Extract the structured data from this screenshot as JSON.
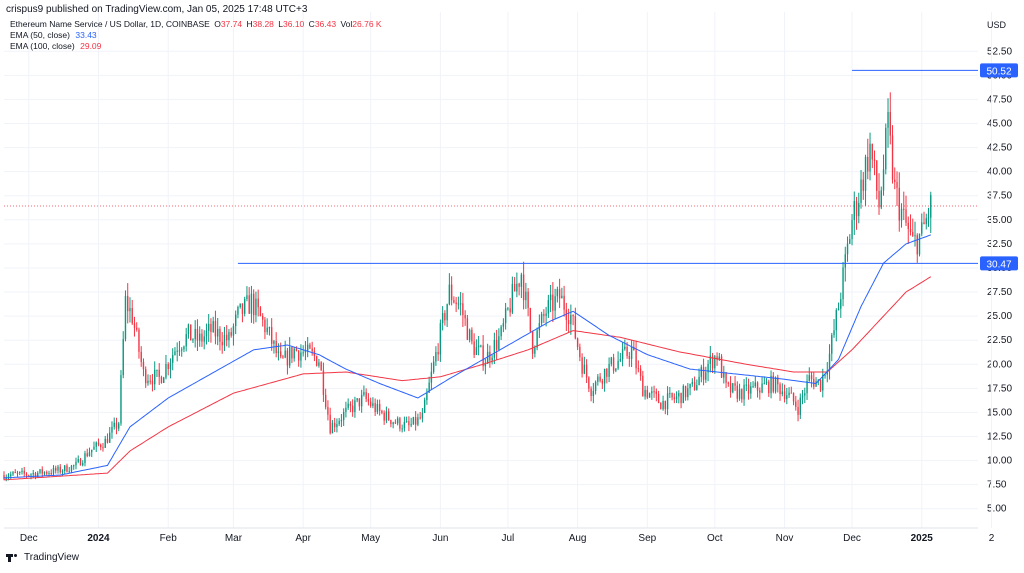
{
  "header": {
    "published": "crispus9 published on TradingView.com, Jan 05, 2025 17:48 UTC+3"
  },
  "legend": {
    "symbol": "Ethereum Name Service / US Dollar, 1D, COINBASE",
    "open_label": "O",
    "open": "37.74",
    "high_label": "H",
    "high": "38.28",
    "low_label": "L",
    "low": "36.10",
    "close_label": "C",
    "close": "36.43",
    "vol_label": "Vol",
    "vol": "26.76 K",
    "ema50_label": "EMA (50, close)",
    "ema50_value": "33.43",
    "ema100_label": "EMA (100, close)",
    "ema100_value": "29.09"
  },
  "axis": {
    "currency": "USD"
  },
  "footer": {
    "brand": "TradingView"
  },
  "colors": {
    "up": "#089981",
    "down": "#f23645",
    "ema50": "#2962ff",
    "ema100": "#f23645",
    "hline": "#2962ff",
    "grid": "#f0f3fa"
  },
  "chart_data": {
    "type": "candlestick",
    "title": "Ethereum Name Service / US Dollar, 1D, COINBASE",
    "xlabel": "",
    "ylabel": "USD",
    "y_range": [
      3.0,
      54.5
    ],
    "yticks": [
      "5.00",
      "7.50",
      "10.00",
      "12.50",
      "15.00",
      "17.50",
      "20.00",
      "22.50",
      "25.00",
      "27.50",
      "30.00",
      "32.50",
      "35.00",
      "37.50",
      "40.00",
      "42.50",
      "45.00",
      "47.50",
      "50.00",
      "52.50"
    ],
    "x_range": [
      "2023-11-20",
      "2025-01-26"
    ],
    "xticks": [
      {
        "date": "2023-12-01",
        "label": "Dec",
        "bold": false
      },
      {
        "date": "2024-01-01",
        "label": "2024",
        "bold": true
      },
      {
        "date": "2024-02-01",
        "label": "Feb",
        "bold": false
      },
      {
        "date": "2024-03-01",
        "label": "Mar",
        "bold": false
      },
      {
        "date": "2024-04-01",
        "label": "Apr",
        "bold": false
      },
      {
        "date": "2024-05-01",
        "label": "May",
        "bold": false
      },
      {
        "date": "2024-06-01",
        "label": "Jun",
        "bold": false
      },
      {
        "date": "2024-07-01",
        "label": "Jul",
        "bold": false
      },
      {
        "date": "2024-08-01",
        "label": "Aug",
        "bold": false
      },
      {
        "date": "2024-09-01",
        "label": "Sep",
        "bold": false
      },
      {
        "date": "2024-10-01",
        "label": "Oct",
        "bold": false
      },
      {
        "date": "2024-11-01",
        "label": "Nov",
        "bold": false
      },
      {
        "date": "2024-12-01",
        "label": "Dec",
        "bold": false
      },
      {
        "date": "2025-01-01",
        "label": "2025",
        "bold": true
      },
      {
        "date": "2025-02-01",
        "label": "2",
        "bold": false
      }
    ],
    "grid": true,
    "close_waypoints": [
      [
        "2023-11-20",
        8.5
      ],
      [
        "2023-12-01",
        8.6
      ],
      [
        "2023-12-15",
        9.0
      ],
      [
        "2023-12-22",
        9.5
      ],
      [
        "2023-12-28",
        11.0
      ],
      [
        "2024-01-04",
        12.0
      ],
      [
        "2024-01-10",
        14.0
      ],
      [
        "2024-01-13",
        26.5
      ],
      [
        "2024-01-16",
        25.0
      ],
      [
        "2024-01-21",
        19.0
      ],
      [
        "2024-01-28",
        18.5
      ],
      [
        "2024-02-05",
        22.0
      ],
      [
        "2024-02-10",
        23.0
      ],
      [
        "2024-02-15",
        22.5
      ],
      [
        "2024-02-20",
        23.5
      ],
      [
        "2024-02-28",
        22.5
      ],
      [
        "2024-03-03",
        25.0
      ],
      [
        "2024-03-09",
        26.5
      ],
      [
        "2024-03-16",
        23.5
      ],
      [
        "2024-03-22",
        20.0
      ],
      [
        "2024-03-28",
        21.5
      ],
      [
        "2024-04-04",
        21.0
      ],
      [
        "2024-04-08",
        20.5
      ],
      [
        "2024-04-13",
        13.5
      ],
      [
        "2024-04-20",
        15.0
      ],
      [
        "2024-04-28",
        16.5
      ],
      [
        "2024-05-05",
        15.0
      ],
      [
        "2024-05-12",
        14.0
      ],
      [
        "2024-05-18",
        13.5
      ],
      [
        "2024-05-24",
        14.5
      ],
      [
        "2024-05-30",
        21.0
      ],
      [
        "2024-06-05",
        27.5
      ],
      [
        "2024-06-10",
        26.0
      ],
      [
        "2024-06-15",
        22.0
      ],
      [
        "2024-06-21",
        20.5
      ],
      [
        "2024-06-28",
        23.0
      ],
      [
        "2024-07-03",
        27.0
      ],
      [
        "2024-07-07",
        29.5
      ],
      [
        "2024-07-12",
        22.0
      ],
      [
        "2024-07-18",
        25.5
      ],
      [
        "2024-07-24",
        27.0
      ],
      [
        "2024-07-29",
        25.0
      ],
      [
        "2024-08-03",
        20.0
      ],
      [
        "2024-08-07",
        17.5
      ],
      [
        "2024-08-14",
        19.5
      ],
      [
        "2024-08-20",
        20.5
      ],
      [
        "2024-08-25",
        21.5
      ],
      [
        "2024-08-30",
        17.5
      ],
      [
        "2024-09-07",
        16.0
      ],
      [
        "2024-09-14",
        16.5
      ],
      [
        "2024-09-21",
        17.5
      ],
      [
        "2024-09-28",
        20.0
      ],
      [
        "2024-10-02",
        21.0
      ],
      [
        "2024-10-06",
        17.5
      ],
      [
        "2024-10-12",
        17.0
      ],
      [
        "2024-10-20",
        17.5
      ],
      [
        "2024-10-27",
        18.0
      ],
      [
        "2024-11-02",
        17.0
      ],
      [
        "2024-11-07",
        15.5
      ],
      [
        "2024-11-12",
        18.5
      ],
      [
        "2024-11-17",
        18.0
      ],
      [
        "2024-11-21",
        21.0
      ],
      [
        "2024-11-25",
        26.0
      ],
      [
        "2024-11-29",
        32.0
      ],
      [
        "2024-12-01",
        35.0
      ],
      [
        "2024-12-05",
        38.5
      ],
      [
        "2024-12-09",
        42.5
      ],
      [
        "2024-12-13",
        36.5
      ],
      [
        "2024-12-17",
        44.5
      ],
      [
        "2024-12-20",
        38.0
      ],
      [
        "2024-12-24",
        35.0
      ],
      [
        "2024-12-28",
        32.5
      ],
      [
        "2025-01-01",
        33.5
      ],
      [
        "2025-01-05",
        36.43
      ]
    ],
    "ema50_waypoints": [
      [
        "2023-11-20",
        8.2
      ],
      [
        "2023-12-15",
        8.5
      ],
      [
        "2024-01-05",
        9.5
      ],
      [
        "2024-01-15",
        13.5
      ],
      [
        "2024-02-01",
        16.5
      ],
      [
        "2024-02-20",
        19.0
      ],
      [
        "2024-03-10",
        21.5
      ],
      [
        "2024-03-25",
        22.0
      ],
      [
        "2024-04-08",
        21.0
      ],
      [
        "2024-04-20",
        19.5
      ],
      [
        "2024-05-05",
        18.0
      ],
      [
        "2024-05-22",
        16.5
      ],
      [
        "2024-06-05",
        18.5
      ],
      [
        "2024-06-20",
        20.5
      ],
      [
        "2024-07-05",
        22.5
      ],
      [
        "2024-07-20",
        24.5
      ],
      [
        "2024-07-30",
        25.5
      ],
      [
        "2024-08-15",
        23.0
      ],
      [
        "2024-09-01",
        21.0
      ],
      [
        "2024-09-20",
        19.5
      ],
      [
        "2024-10-10",
        19.0
      ],
      [
        "2024-10-30",
        18.5
      ],
      [
        "2024-11-15",
        18.0
      ],
      [
        "2024-11-25",
        20.5
      ],
      [
        "2024-12-05",
        26.0
      ],
      [
        "2024-12-15",
        30.5
      ],
      [
        "2024-12-25",
        32.5
      ],
      [
        "2025-01-05",
        33.43
      ]
    ],
    "ema100_waypoints": [
      [
        "2023-11-20",
        8.0
      ],
      [
        "2024-01-05",
        8.7
      ],
      [
        "2024-01-15",
        11.0
      ],
      [
        "2024-02-01",
        13.5
      ],
      [
        "2024-03-01",
        17.0
      ],
      [
        "2024-04-01",
        19.0
      ],
      [
        "2024-04-20",
        19.2
      ],
      [
        "2024-05-15",
        18.3
      ],
      [
        "2024-06-01",
        18.7
      ],
      [
        "2024-06-20",
        20.0
      ],
      [
        "2024-07-10",
        21.5
      ],
      [
        "2024-07-30",
        23.5
      ],
      [
        "2024-08-20",
        22.8
      ],
      [
        "2024-09-15",
        21.3
      ],
      [
        "2024-10-15",
        20.0
      ],
      [
        "2024-11-05",
        19.2
      ],
      [
        "2024-11-20",
        19.2
      ],
      [
        "2024-12-01",
        21.5
      ],
      [
        "2024-12-15",
        25.0
      ],
      [
        "2024-12-25",
        27.5
      ],
      [
        "2025-01-05",
        29.09
      ]
    ],
    "horizontal_lines": [
      {
        "value": "50.52",
        "from": "2024-12-01",
        "color": "#2962ff"
      },
      {
        "value": "30.47",
        "from": "2024-03-03",
        "color": "#2962ff"
      }
    ],
    "price_line": {
      "value": "36.43",
      "color": "#f23645"
    },
    "ema50_last": 33.43,
    "ema100_last": 29.09
  }
}
